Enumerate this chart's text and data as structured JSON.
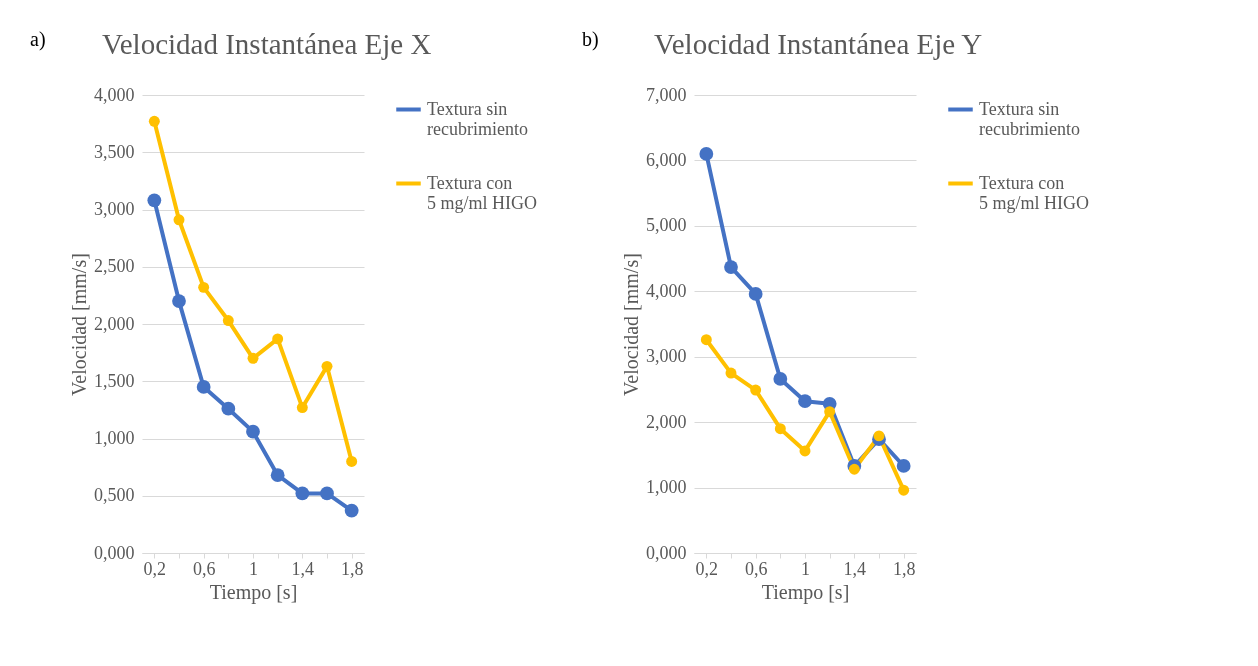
{
  "chart_data": [
    {
      "type": "line",
      "title": "Velocidad Instantánea Eje X",
      "xlabel": "Tiempo [s]",
      "ylabel": "Velocidad [mm/s]",
      "annotations": [
        "a)"
      ],
      "categories": [
        "0,2",
        null,
        "0,6",
        null,
        "1",
        null,
        "1,4",
        null,
        "1,8"
      ],
      "series": [
        {
          "name": "Textura sin recubrimiento",
          "color": "#4472c4",
          "values": [
            3.08,
            2.2,
            1.45,
            1.26,
            1.06,
            0.68,
            0.52,
            0.52,
            0.37
          ]
        },
        {
          "name": "Textura con 5 mg/ml HIGO",
          "color": "#ffc000",
          "values": [
            3.77,
            2.91,
            2.32,
            2.03,
            1.7,
            1.87,
            1.27,
            1.63,
            0.8
          ]
        }
      ],
      "ylim": [
        0,
        4
      ],
      "yticks": [
        {
          "value": 0,
          "label": "0,000"
        },
        {
          "value": 0.5,
          "label": "0,500"
        },
        {
          "value": 1,
          "label": "1,000"
        },
        {
          "value": 1.5,
          "label": "1,500"
        },
        {
          "value": 2,
          "label": "2,000"
        },
        {
          "value": 2.5,
          "label": "2,500"
        },
        {
          "value": 3,
          "label": "3,000"
        },
        {
          "value": 3.5,
          "label": "3,500"
        },
        {
          "value": 4,
          "label": "4,000"
        }
      ],
      "grid": "y",
      "legend": "right",
      "marker": "circle",
      "line_style": "solid"
    },
    {
      "type": "line",
      "title": "Velocidad Instantánea Eje Y",
      "xlabel": "Tiempo [s]",
      "ylabel": "Velocidad [mm/s]",
      "annotations": [
        "b)"
      ],
      "categories": [
        "0,2",
        null,
        "0,6",
        null,
        "1",
        null,
        "1,4",
        null,
        "1,8"
      ],
      "series": [
        {
          "name": "Textura sin recubrimiento",
          "color": "#4472c4",
          "values": [
            6.1,
            4.37,
            3.96,
            2.66,
            2.32,
            2.28,
            1.33,
            1.74,
            1.33
          ]
        },
        {
          "name": "Textura con 5 mg/ml HIGO",
          "color": "#ffc000",
          "values": [
            3.26,
            2.75,
            2.49,
            1.9,
            1.56,
            2.16,
            1.28,
            1.79,
            0.96
          ]
        }
      ],
      "ylim": [
        0,
        7
      ],
      "yticks": [
        {
          "value": 0,
          "label": "0,000"
        },
        {
          "value": 1,
          "label": "1,000"
        },
        {
          "value": 2,
          "label": "2,000"
        },
        {
          "value": 3,
          "label": "3,000"
        },
        {
          "value": 4,
          "label": "4,000"
        },
        {
          "value": 5,
          "label": "5,000"
        },
        {
          "value": 6,
          "label": "6,000"
        },
        {
          "value": 7,
          "label": "7,000"
        }
      ],
      "grid": "y",
      "legend": "right",
      "marker": "circle",
      "line_style": "solid"
    }
  ]
}
